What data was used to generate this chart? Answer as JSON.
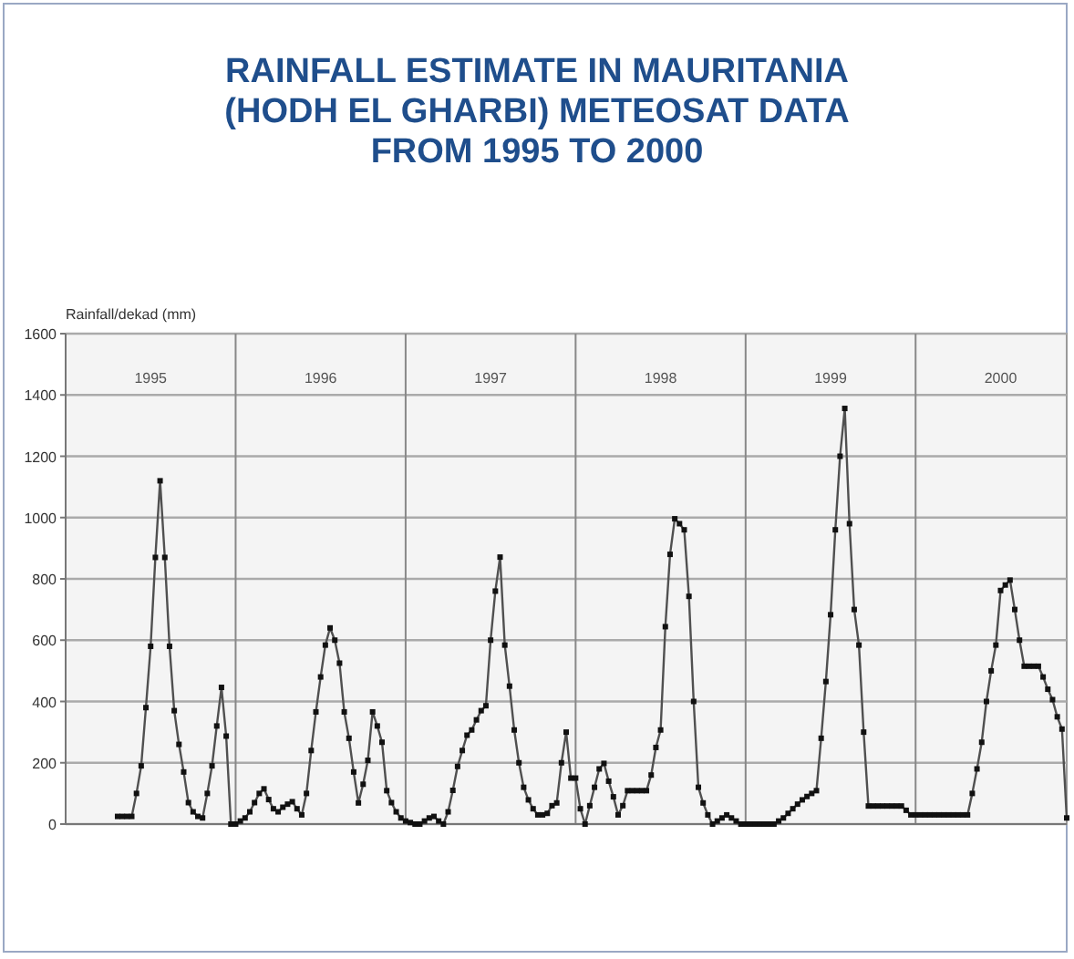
{
  "chart_data": {
    "type": "line",
    "title": "RAINFALL ESTIMATE IN MAURITANIA\n(HODH EL GHARBI) METEOSAT DATA\nFROM 1995 TO 2000",
    "ylabel": "Rainfall/dekad (mm)",
    "categories": [
      null,
      null,
      null,
      null,
      null,
      null,
      null,
      null,
      null,
      null,
      null,
      null,
      null,
      null,
      null,
      null,
      null,
      null,
      "1995",
      null,
      null,
      null,
      null,
      null,
      null,
      null,
      null,
      null,
      null,
      null,
      null,
      null,
      null,
      null,
      null,
      null,
      null,
      null,
      null,
      null,
      null,
      null,
      null,
      null,
      null,
      null,
      null,
      null,
      null,
      null,
      null,
      null,
      null,
      null,
      "1996",
      null,
      null,
      null,
      null,
      null,
      null,
      null,
      null,
      null,
      null,
      null,
      null,
      null,
      null,
      null,
      null,
      null,
      null,
      null,
      null,
      null,
      null,
      null,
      null,
      null,
      null,
      null,
      null,
      null,
      null,
      null,
      null,
      null,
      null,
      null,
      "1997",
      null,
      null,
      null,
      null,
      null,
      null,
      null,
      null,
      null,
      null,
      null,
      null,
      null,
      null,
      null,
      null,
      null,
      null,
      null,
      null,
      null,
      null,
      null,
      null,
      null,
      null,
      null,
      null,
      null,
      null,
      null,
      null,
      null,
      null,
      null,
      "1998",
      null,
      null,
      null,
      null,
      null,
      null,
      null,
      null,
      null,
      null,
      null,
      null,
      null,
      null,
      null,
      null,
      null,
      null,
      null,
      null,
      null,
      null,
      null,
      null,
      null,
      null,
      null,
      null,
      null,
      null,
      null,
      null,
      null,
      null,
      null,
      "1999",
      null,
      null,
      null,
      null,
      null,
      null,
      null,
      null,
      null,
      null,
      null,
      null,
      null,
      null,
      null,
      null,
      null,
      null,
      null,
      null,
      null,
      null,
      null,
      null,
      null,
      null,
      null,
      null,
      null,
      null,
      null,
      null,
      null,
      null,
      null,
      "2000",
      null,
      null,
      null,
      null,
      null,
      null,
      null,
      null,
      null,
      null,
      null,
      null,
      null,
      null
    ],
    "series": [
      {
        "color": "#505050",
        "values": [
          null,
          null,
          null,
          null,
          null,
          null,
          null,
          null,
          null,
          null,
          null,
          25,
          25,
          25,
          25,
          100,
          190,
          380,
          580,
          870,
          1120,
          870,
          580,
          370,
          260,
          170,
          70,
          40,
          25,
          20,
          100,
          190,
          320,
          446,
          287,
          0,
          0,
          10,
          20,
          40,
          70,
          100,
          115,
          80,
          50,
          40,
          55,
          65,
          73,
          50,
          30,
          100,
          240,
          366,
          480,
          584,
          640,
          600,
          525,
          366,
          280,
          170,
          69,
          130,
          208,
          366,
          320,
          267,
          109,
          70,
          40,
          20,
          10,
          5,
          0,
          0,
          10,
          20,
          25,
          10,
          0,
          40,
          110,
          188,
          240,
          290,
          307,
          340,
          370,
          386,
          600,
          760,
          871,
          584,
          450,
          307,
          200,
          120,
          79,
          50,
          30,
          30,
          35,
          60,
          69,
          200,
          300,
          150,
          150,
          50,
          0,
          60,
          120,
          180,
          198,
          140,
          89,
          30,
          60,
          109,
          109,
          109,
          109,
          109,
          160,
          250,
          307,
          644,
          880,
          996,
          980,
          960,
          743,
          400,
          120,
          69,
          30,
          0,
          10,
          20,
          30,
          20,
          10,
          0,
          0,
          0,
          0,
          0,
          0,
          0,
          0,
          10,
          20,
          35,
          50,
          65,
          79,
          90,
          100,
          109,
          280,
          465,
          683,
          960,
          1200,
          1356,
          980,
          700,
          584,
          300,
          59,
          59,
          59,
          59,
          59,
          59,
          59,
          59,
          45,
          30,
          30,
          30,
          30,
          30,
          30,
          30,
          30,
          30,
          30,
          30,
          30,
          30,
          100,
          180,
          267,
          400,
          500,
          584,
          762,
          780,
          796,
          700,
          600,
          515,
          515,
          515,
          515,
          480,
          440,
          406,
          350,
          310,
          20
        ]
      }
    ],
    "ylim": [
      0,
      1600
    ],
    "yticks": [
      0,
      200,
      400,
      600,
      800,
      1000,
      1200,
      1400,
      1600
    ],
    "grid": "y",
    "marker": "square",
    "line_style": "solid"
  }
}
